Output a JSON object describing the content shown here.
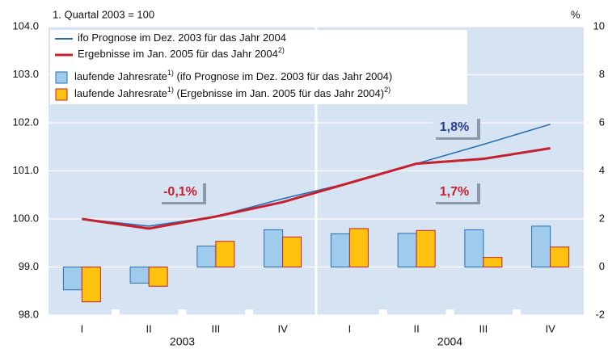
{
  "chart_data": {
    "type": "line-bar",
    "subtitle": "1. Quartal 2003 = 100",
    "y2_unit": "%",
    "categories": [
      "I",
      "II",
      "III",
      "IV",
      "I",
      "II",
      "III",
      "IV"
    ],
    "groups": [
      "2003",
      "2004"
    ],
    "ylim": [
      98,
      104
    ],
    "yticks": [
      {
        "value": 98,
        "label": "98.0"
      },
      {
        "value": 99,
        "label": "99.0"
      },
      {
        "value": 100,
        "label": "100.0"
      },
      {
        "value": 101,
        "label": "101.0"
      },
      {
        "value": 102,
        "label": "102.0"
      },
      {
        "value": 103,
        "label": "103.0"
      },
      {
        "value": 104,
        "label": "104.0"
      }
    ],
    "y2lim": [
      -2,
      10
    ],
    "y2ticks": [
      -2,
      0,
      2,
      4,
      6,
      8,
      10
    ],
    "grid": true,
    "series": [
      {
        "name": "ifo Prognose im Dez. 2003 für das Jahr 2004",
        "kind": "line",
        "color": "#1f6db3",
        "values": [
          100.0,
          99.85,
          100.05,
          100.42,
          100.75,
          101.15,
          101.55,
          101.97
        ]
      },
      {
        "name": "Ergebnisse im Jan. 2005 für das Jahr 2004",
        "note": "2)",
        "kind": "line",
        "color": "#c6202e",
        "values": [
          100.0,
          99.8,
          100.05,
          100.35,
          100.75,
          101.15,
          101.25,
          101.47
        ]
      },
      {
        "name": "laufende Jahresrate",
        "note": "1)",
        "detail": " (ifo Prognose im Dez. 2003 für das Jahr 2004)",
        "kind": "bar",
        "axis": "y2",
        "color": "#9fcbec",
        "values": [
          -0.95,
          -0.67,
          0.87,
          1.55,
          1.38,
          1.4,
          1.55,
          1.7
        ]
      },
      {
        "name": "laufende Jahresrate",
        "note": "1)",
        "detail": " (Ergebnisse im Jan. 2005 für das Jahr 2004)",
        "detail_note": "2)",
        "kind": "bar",
        "axis": "y2",
        "color": "#ffc20e",
        "values": [
          -1.45,
          -0.8,
          1.07,
          1.25,
          1.6,
          1.52,
          0.4,
          0.83
        ]
      }
    ],
    "annotations": [
      {
        "text": "-0,1%",
        "color": "#c6202e"
      },
      {
        "text": "1,8%",
        "color": "#2b3e8c"
      },
      {
        "text": "1,7%",
        "color": "#c6202e"
      }
    ]
  }
}
